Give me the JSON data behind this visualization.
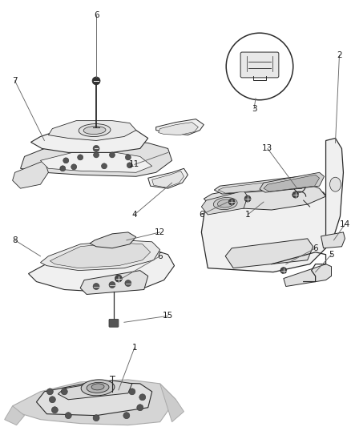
{
  "background_color": "#f5f5f5",
  "line_color": "#2a2a2a",
  "label_color": "#1a1a1a",
  "fig_width": 4.38,
  "fig_height": 5.33,
  "dpi": 100
}
